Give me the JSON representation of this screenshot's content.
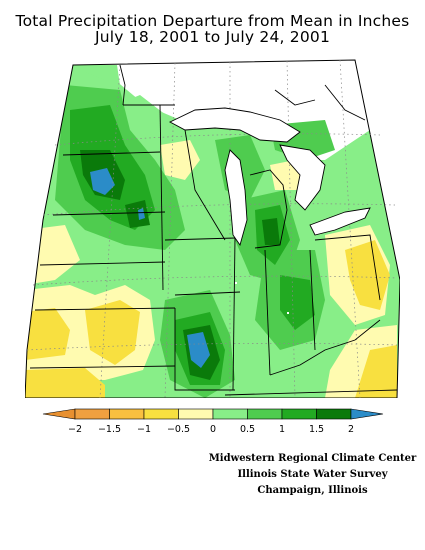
{
  "title": {
    "line1": "Total Precipitation Departure from Mean in Inches",
    "line2": "July 18, 2001 to July 24, 2001"
  },
  "legend": {
    "labels": [
      "−2",
      "−1.5",
      "−1",
      "−0.5",
      "0",
      "0.5",
      "1",
      "1.5",
      "2"
    ],
    "colors": [
      "#f0a040",
      "#f8c040",
      "#f8e040",
      "#fffbb0",
      "#88ee88",
      "#4fcc4f",
      "#22aa22",
      "#0a7a0a",
      "#2b8cc8"
    ],
    "left_arrow_color": "#e89030",
    "right_arrow_color": "#2b8cc8"
  },
  "credits": {
    "line1": "Midwestern Regional Climate Center",
    "line2": "Illinois State Water Survey",
    "line3": "Champaign, Illinois"
  },
  "map": {
    "region": "Midwest",
    "base_fill": "#88ee88",
    "colors": {
      "light_yellow": "#fffbb0",
      "yellow": "#f8e040",
      "green_light": "#88ee88",
      "green_mid": "#4fcc4f",
      "green_dark": "#22aa22",
      "green_darkest": "#0a7a0a",
      "blue": "#2b8cc8"
    }
  }
}
